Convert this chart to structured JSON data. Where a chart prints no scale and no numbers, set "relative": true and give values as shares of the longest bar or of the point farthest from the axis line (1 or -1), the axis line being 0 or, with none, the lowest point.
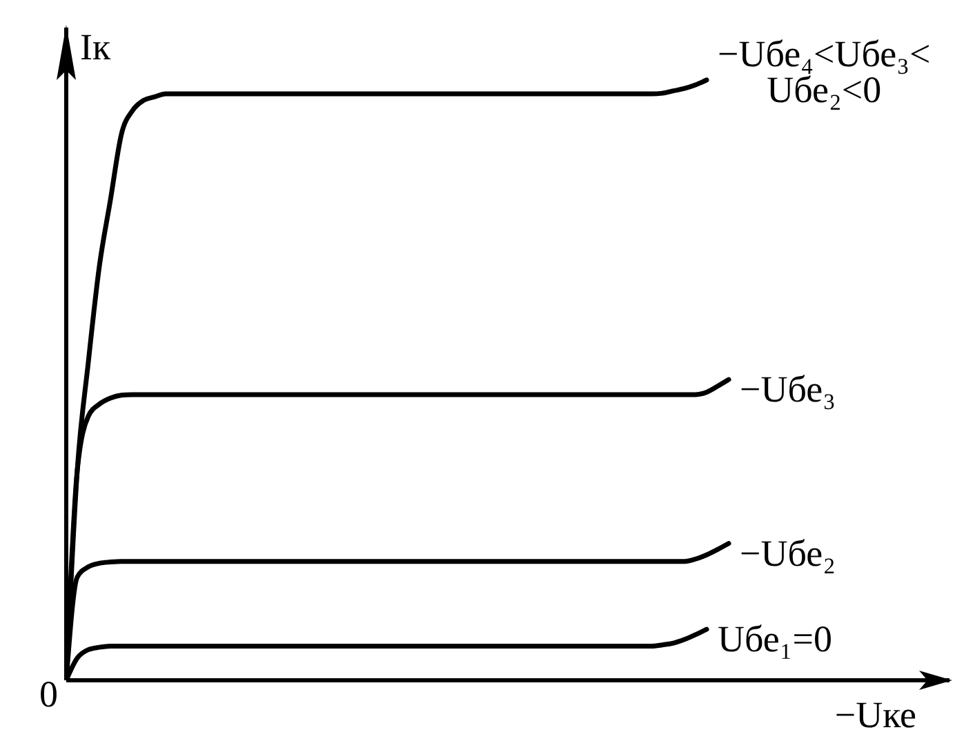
{
  "chart_data": {
    "type": "line",
    "xlabel": "−Uке",
    "ylabel": "Iк",
    "relative": true,
    "marker": "none",
    "annotations": [
      "0"
    ],
    "categories": [
      null,
      null,
      null,
      null,
      null,
      null,
      null,
      null,
      null,
      null,
      null,
      null,
      null,
      null,
      null,
      null,
      null,
      null,
      null,
      null,
      null,
      null,
      null,
      null,
      null,
      null,
      null,
      null,
      null,
      null,
      null,
      null,
      null,
      null,
      null,
      null,
      null,
      null,
      null,
      null,
      null,
      null,
      null,
      null,
      null,
      null,
      null,
      null,
      null,
      null,
      null,
      null,
      null,
      null,
      null,
      null,
      null,
      null,
      null,
      null,
      null
    ],
    "series": [
      {
        "name": "Uбе₁=0",
        "color": "#000000",
        "values": [
          0,
          0.037,
          0.051,
          0.055,
          0.057,
          0.057,
          0.057,
          0.057,
          0.057,
          0.057,
          0.057,
          0.057,
          0.057,
          0.057,
          0.057,
          0.057,
          0.057,
          0.057,
          0.057,
          0.057,
          0.057,
          0.057,
          0.057,
          0.057,
          0.057,
          0.057,
          0.057,
          0.057,
          0.057,
          0.057,
          0.057,
          0.057,
          0.057,
          0.057,
          0.057,
          0.057,
          0.057,
          0.057,
          0.057,
          0.057,
          0.057,
          0.057,
          0.057,
          0.057,
          0.057,
          0.057,
          0.057,
          0.057,
          0.057,
          0.057,
          0.057,
          0.057,
          0.057,
          0.057,
          0.059,
          0.062,
          0.068,
          0.076,
          0.085,
          null,
          null
        ]
      },
      {
        "name": "−Uбе₂",
        "color": "#000000",
        "values": [
          0,
          0.172,
          0.189,
          0.195,
          0.197,
          0.198,
          0.198,
          0.198,
          0.198,
          0.198,
          0.198,
          0.198,
          0.198,
          0.198,
          0.198,
          0.198,
          0.198,
          0.198,
          0.198,
          0.198,
          0.198,
          0.198,
          0.198,
          0.198,
          0.198,
          0.198,
          0.198,
          0.198,
          0.198,
          0.198,
          0.198,
          0.198,
          0.198,
          0.198,
          0.198,
          0.198,
          0.198,
          0.198,
          0.198,
          0.198,
          0.198,
          0.198,
          0.198,
          0.198,
          0.198,
          0.198,
          0.198,
          0.198,
          0.198,
          0.198,
          0.198,
          0.198,
          0.198,
          0.198,
          0.198,
          0.198,
          0.198,
          0.202,
          0.209,
          0.218,
          0.228
        ]
      },
      {
        "name": "−Uбе₃",
        "color": "#000000",
        "values": [
          0,
          0.35,
          0.44,
          0.46,
          0.47,
          0.475,
          0.476,
          0.476,
          0.476,
          0.476,
          0.476,
          0.476,
          0.476,
          0.476,
          0.476,
          0.476,
          0.476,
          0.476,
          0.476,
          0.476,
          0.476,
          0.476,
          0.476,
          0.476,
          0.476,
          0.476,
          0.476,
          0.476,
          0.476,
          0.476,
          0.476,
          0.476,
          0.476,
          0.476,
          0.476,
          0.476,
          0.476,
          0.476,
          0.476,
          0.476,
          0.476,
          0.476,
          0.476,
          0.476,
          0.476,
          0.476,
          0.476,
          0.476,
          0.476,
          0.476,
          0.476,
          0.476,
          0.476,
          0.476,
          0.476,
          0.476,
          0.476,
          0.476,
          0.48,
          0.49,
          0.501
        ]
      },
      {
        "name": "−Uбе₄<Uбе₃<Uбе₂<0",
        "color": "#000000",
        "values": [
          0,
          0.35,
          0.53,
          0.69,
          0.8,
          0.91,
          0.949,
          0.966,
          0.972,
          0.977,
          0.977,
          0.977,
          0.977,
          0.977,
          0.977,
          0.977,
          0.977,
          0.977,
          0.977,
          0.977,
          0.977,
          0.977,
          0.977,
          0.977,
          0.977,
          0.977,
          0.977,
          0.977,
          0.977,
          0.977,
          0.977,
          0.977,
          0.977,
          0.977,
          0.977,
          0.977,
          0.977,
          0.977,
          0.977,
          0.977,
          0.977,
          0.977,
          0.977,
          0.977,
          0.977,
          0.977,
          0.977,
          0.977,
          0.977,
          0.977,
          0.977,
          0.977,
          0.977,
          0.977,
          0.978,
          0.982,
          0.986,
          0.992,
          1,
          null,
          null
        ]
      }
    ]
  }
}
